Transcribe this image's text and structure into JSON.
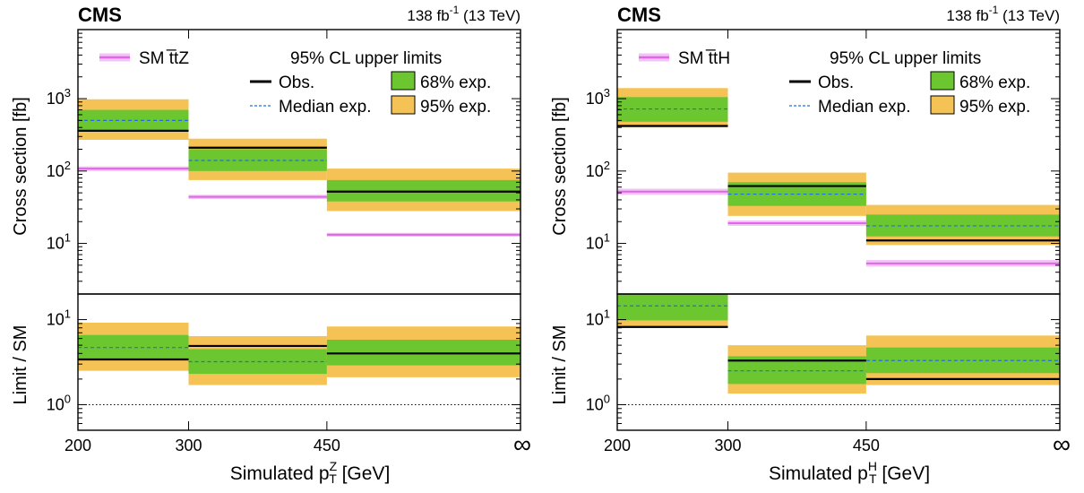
{
  "chart_data": [
    {
      "type": "step-limits",
      "experiment": "CMS",
      "lumi": "138 fb",
      "lumi_sup": "-1",
      "energy": "(13 TeV)",
      "ylabel_top": "Cross section [fb]",
      "ylabel_bottom": "Limit / SM",
      "xlabel_pre": "Simulated p",
      "xlabel_sup": "Z",
      "xlabel_sub": "T",
      "xlabel_post": " [GeV]",
      "x_tick_labels": [
        "200",
        "300",
        "450",
        "∞"
      ],
      "y_scale": "log",
      "ylim_top": [
        2,
        9000
      ],
      "ylim_bottom": [
        0.5,
        20
      ],
      "legend": {
        "sm": "SM t̅tZ",
        "header": "95% CL upper limits",
        "obs": "Obs.",
        "median": "Median exp.",
        "band68": "68% exp.",
        "band95": "95% exp."
      },
      "bins": [
        {
          "obs": 360,
          "exp": 500,
          "b68": [
            360,
            700
          ],
          "b95": [
            270,
            980
          ],
          "sm": 108,
          "sm_unc": [
            100,
            116
          ],
          "r_obs": 3.4,
          "r_exp": 4.7,
          "r_b68": [
            3.4,
            6.6
          ],
          "r_b95": [
            2.5,
            9.2
          ]
        },
        {
          "obs": 210,
          "exp": 140,
          "b68": [
            100,
            200
          ],
          "b95": [
            75,
            280
          ],
          "sm": 44,
          "sm_unc": [
            41,
            47
          ],
          "r_obs": 4.9,
          "r_exp": 3.2,
          "r_b68": [
            2.3,
            4.5
          ],
          "r_b95": [
            1.7,
            6.4
          ]
        },
        {
          "obs": 52,
          "exp": 52,
          "b68": [
            38,
            75
          ],
          "b95": [
            28,
            108
          ],
          "sm": 13.2,
          "sm_unc": [
            12.4,
            14
          ],
          "r_obs": 4.0,
          "r_exp": 4.0,
          "r_b68": [
            2.9,
            5.8
          ],
          "r_b95": [
            2.1,
            8.3
          ]
        }
      ],
      "colors": {
        "band68": "#6cc62f",
        "band95": "#f5c355",
        "sm": "#e066e8",
        "sm_band": "#f2c3f5",
        "median": "#1f6fe0"
      }
    },
    {
      "type": "step-limits",
      "experiment": "CMS",
      "lumi": "138 fb",
      "lumi_sup": "-1",
      "energy": "(13 TeV)",
      "ylabel_top": "Cross section [fb]",
      "ylabel_bottom": "Limit / SM",
      "xlabel_pre": "Simulated p",
      "xlabel_sup": "H",
      "xlabel_sub": "T",
      "xlabel_post": " [GeV]",
      "x_tick_labels": [
        "200",
        "300",
        "450",
        "∞"
      ],
      "y_scale": "log",
      "ylim_top": [
        2,
        9000
      ],
      "ylim_bottom": [
        0.5,
        20
      ],
      "legend": {
        "sm": "SM t̅tH",
        "header": "95% CL upper limits",
        "obs": "Obs.",
        "median": "Median exp.",
        "band68": "68% exp.",
        "band95": "95% exp."
      },
      "bins": [
        {
          "obs": 420,
          "exp": 720,
          "b68": [
            480,
            1050
          ],
          "b95": [
            400,
            1400
          ],
          "sm": 52,
          "sm_unc": [
            47,
            57
          ],
          "r_obs": 8.2,
          "r_exp": 14.5,
          "r_b68": [
            9.8,
            20
          ],
          "r_b95": [
            8,
            20
          ]
        },
        {
          "obs": 62,
          "exp": 48,
          "b68": [
            33,
            70
          ],
          "b95": [
            24,
            95
          ],
          "sm": 19,
          "sm_unc": [
            17.5,
            20.8
          ],
          "r_obs": 3.3,
          "r_exp": 2.5,
          "r_b68": [
            1.75,
            3.7
          ],
          "r_b95": [
            1.35,
            5.0
          ]
        },
        {
          "obs": 11,
          "exp": 17.5,
          "b68": [
            12.5,
            25
          ],
          "b95": [
            9.5,
            34
          ],
          "sm": 5.3,
          "sm_unc": [
            4.8,
            5.9
          ],
          "r_obs": 2.0,
          "r_exp": 3.3,
          "r_b68": [
            2.35,
            4.7
          ],
          "r_b95": [
            1.7,
            6.5
          ]
        }
      ],
      "colors": {
        "band68": "#6cc62f",
        "band95": "#f5c355",
        "sm": "#e066e8",
        "sm_band": "#f2c3f5",
        "median": "#1f6fe0"
      }
    }
  ]
}
